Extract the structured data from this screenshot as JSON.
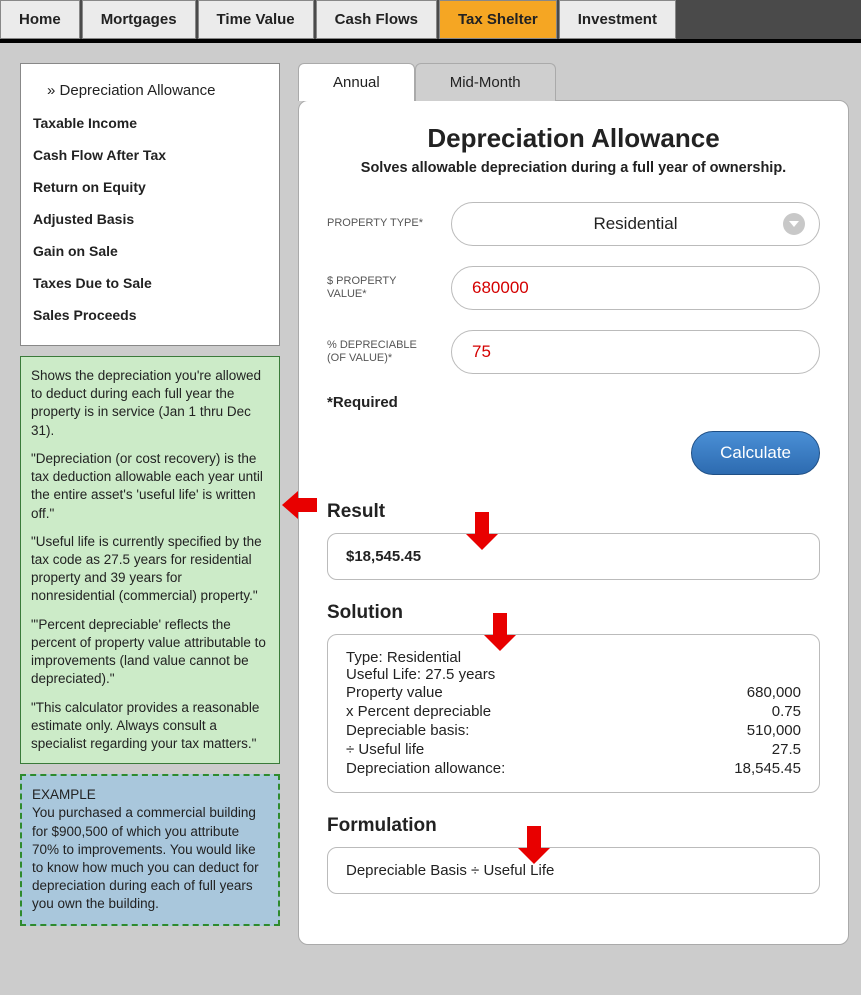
{
  "nav": {
    "tabs": [
      "Home",
      "Mortgages",
      "Time Value",
      "Cash Flows",
      "Tax Shelter",
      "Investment"
    ],
    "active_index": 4
  },
  "sidebar": {
    "items": [
      "Depreciation Allowance",
      "Taxable Income",
      "Cash Flow After Tax",
      "Return on Equity",
      "Adjusted Basis",
      "Gain on Sale",
      "Taxes Due to Sale",
      "Sales Proceeds"
    ],
    "active_index": 0
  },
  "info": {
    "p1": "Shows the depreciation you're allowed to deduct during each full year the property is in service (Jan 1 thru Dec 31).",
    "p2": "\"Depreciation (or cost recovery) is the tax deduction allowable each year until the entire asset's 'useful life' is written off.\"",
    "p3": "\"Useful life is currently specified by the tax code as 27.5 years for residential property and 39 years for nonresidential (commercial) property.\"",
    "p4": "\"'Percent depreciable' reflects the percent of property value attributable to improvements (land value cannot be depreciated).\"",
    "p5": "\"This calculator provides a reasonable estimate only. Always consult a specialist regarding your tax matters.\""
  },
  "example": {
    "title": "EXAMPLE",
    "body": "You purchased a commercial building for $900,500 of which you attribute 70% to improvements. You would like to know how much you can deduct for depreciation during each of full years you own the building."
  },
  "maintabs": {
    "tabs": [
      "Annual",
      "Mid-Month"
    ],
    "active_index": 0
  },
  "panel": {
    "title": "Depreciation Allowance",
    "subtitle": "Solves allowable depreciation during a full year of ownership.",
    "labels": {
      "property_type": "PROPERTY TYPE*",
      "property_value": "$ PROPERTY VALUE*",
      "pct_depreciable": "% DEPRECIABLE (OF VALUE)*"
    },
    "values": {
      "property_type": "Residential",
      "property_value": "680000",
      "pct_depreciable": "75"
    },
    "required": "*Required",
    "calculate": "Calculate",
    "result_head": "Result",
    "result_value": "$18,545.45",
    "solution_head": "Solution",
    "solution": {
      "type_line": "Type: Residential",
      "life_line": "Useful Life: 27.5 years",
      "rows": [
        {
          "l": "Property value",
          "r": "680,000"
        },
        {
          "l": "x Percent depreciable",
          "r": "0.75"
        },
        {
          "l": "Depreciable basis:",
          "r": "510,000"
        },
        {
          "l": "÷ Useful life",
          "r": "27.5"
        },
        {
          "l": "Depreciation allowance:",
          "r": "18,545.45"
        }
      ]
    },
    "formulation_head": "Formulation",
    "formulation": "Depreciable Basis ÷ Useful Life"
  }
}
